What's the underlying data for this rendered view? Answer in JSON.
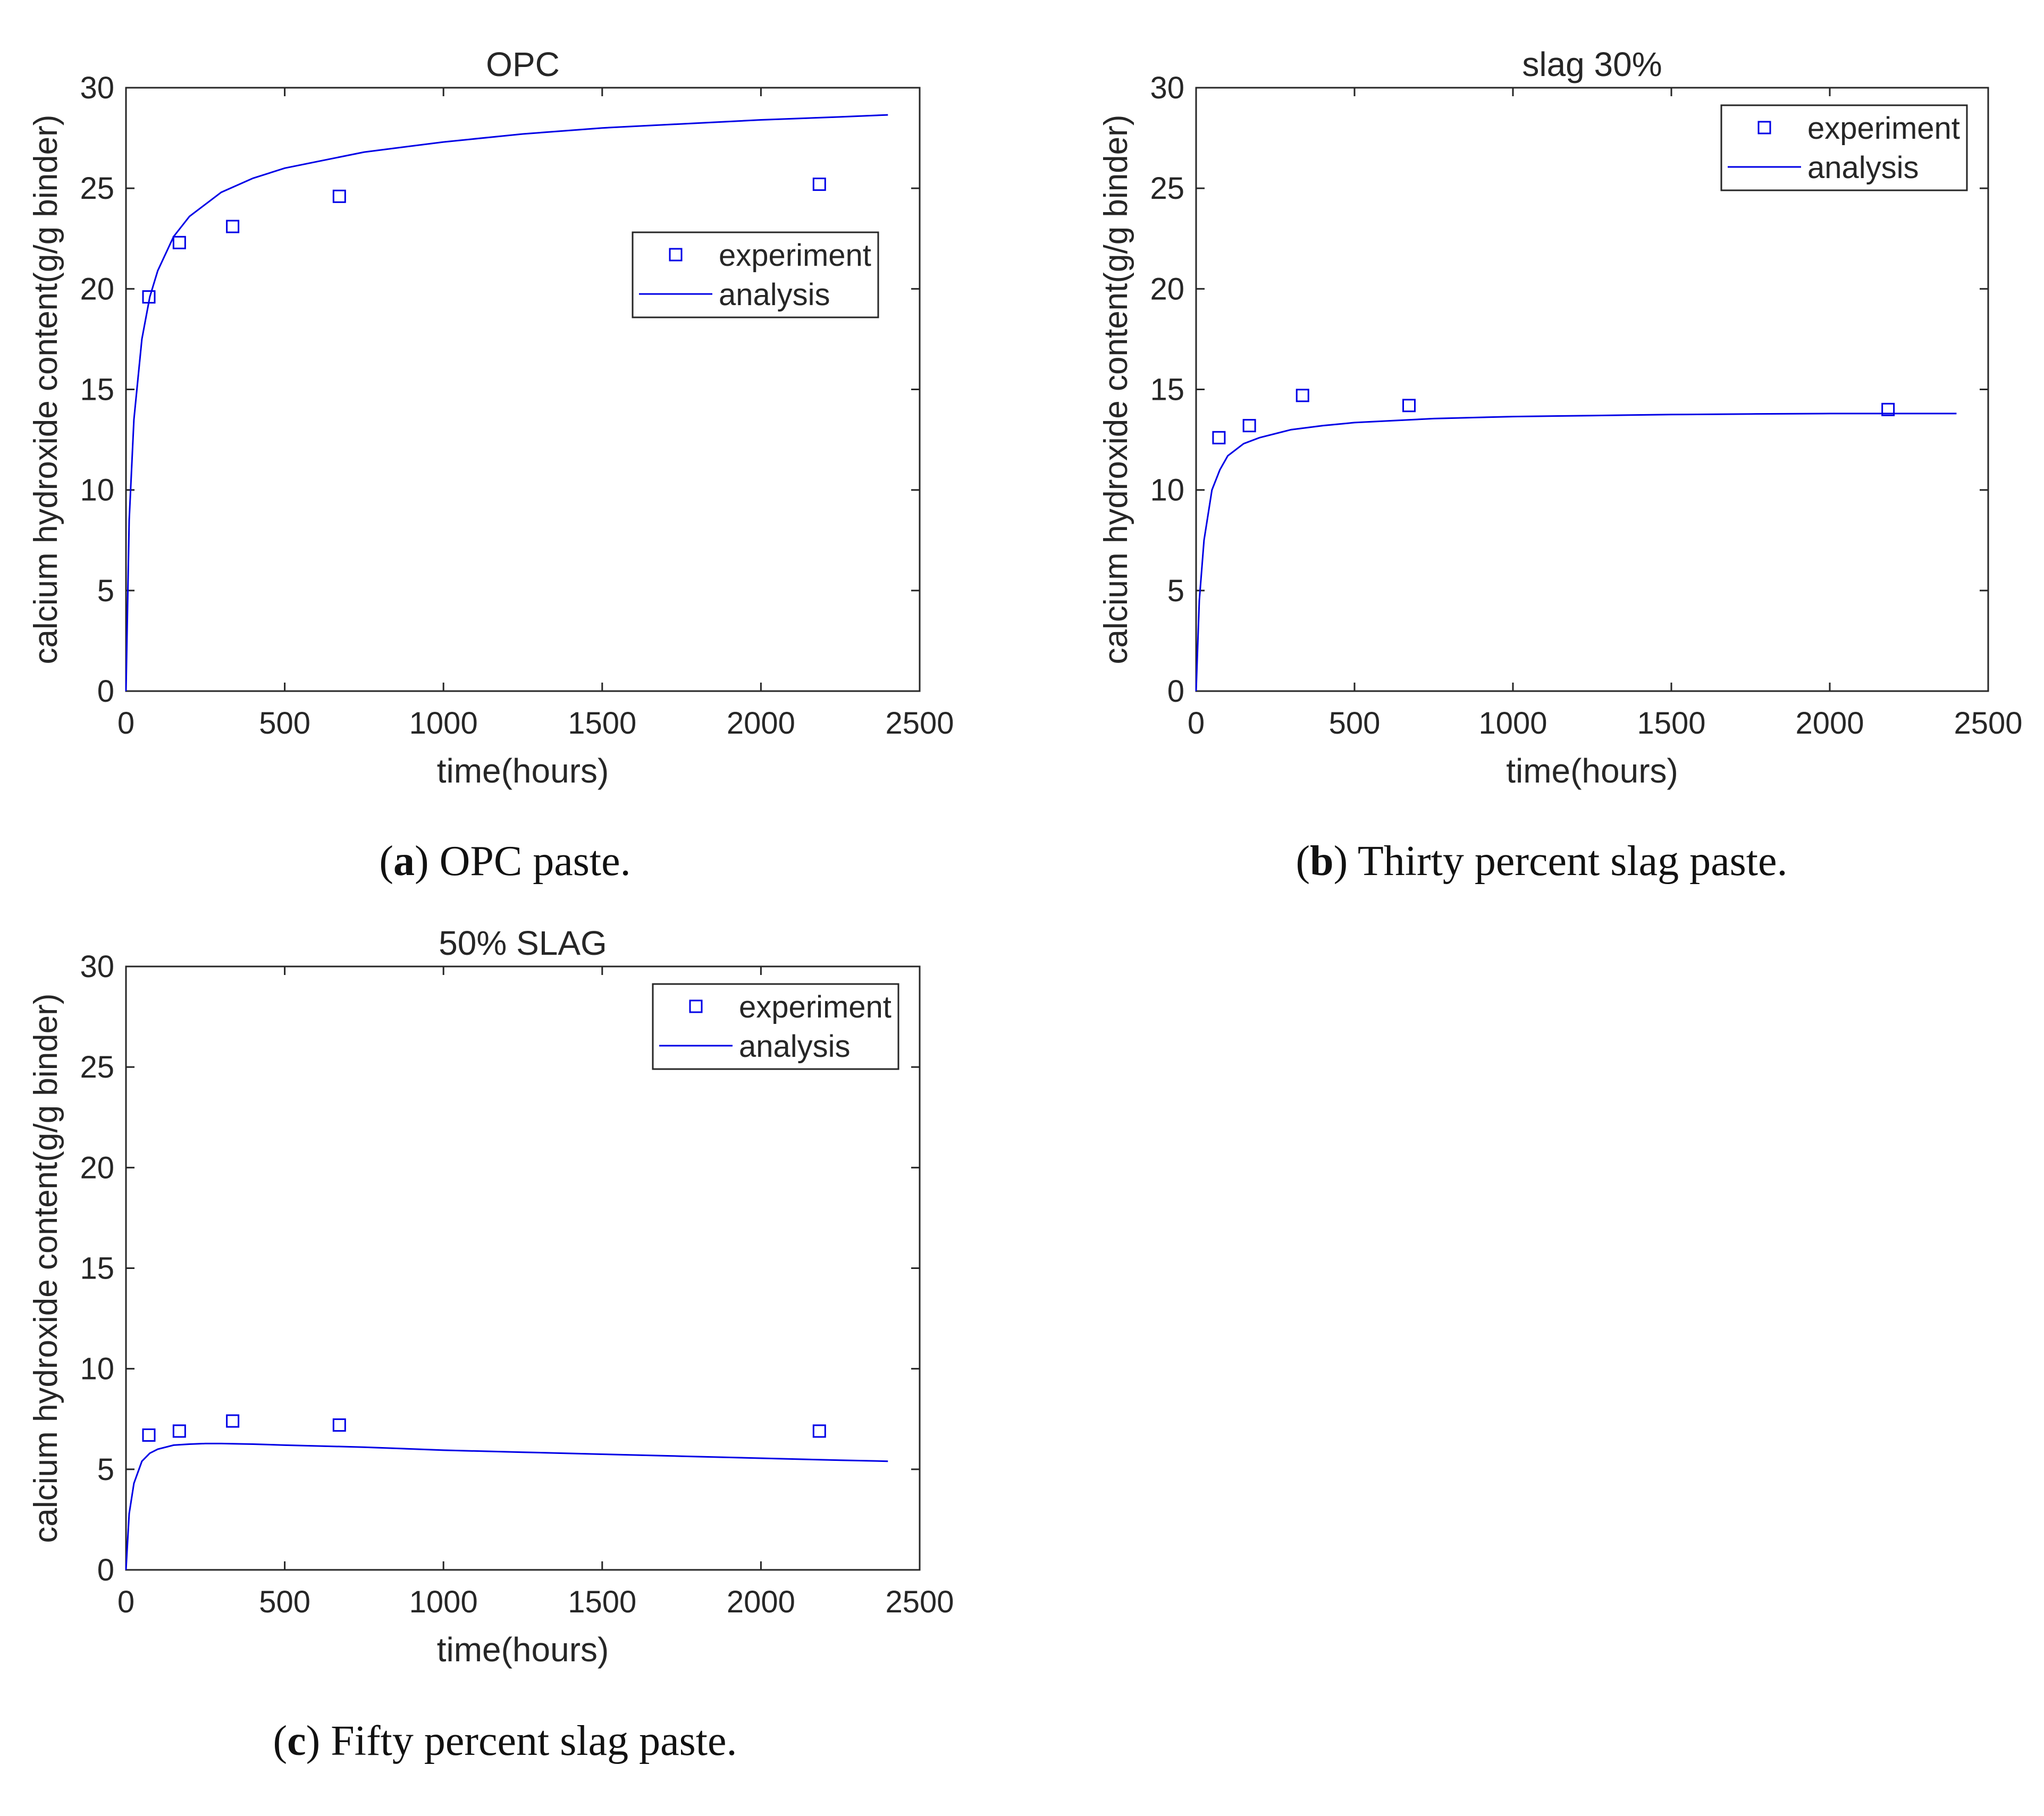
{
  "colors": {
    "series": "#0000e6",
    "axis": "#262626",
    "background": "#ffffff"
  },
  "chart_data": [
    {
      "type": "line+scatter",
      "title": "OPC",
      "xlabel": "time(hours)",
      "ylabel": "calcium hydroxide content(g/g binder)",
      "xlim": [
        0,
        2500
      ],
      "ylim": [
        0,
        30
      ],
      "xticks": [
        0,
        500,
        1000,
        1500,
        2000,
        2500
      ],
      "yticks": [
        0,
        5,
        10,
        15,
        20,
        25,
        30
      ],
      "legend_position": "middle-right",
      "series": [
        {
          "name": "experiment",
          "kind": "scatter",
          "marker": "square",
          "x": [
            72,
            168,
            336,
            672,
            2184
          ],
          "y": [
            19.6,
            22.3,
            23.1,
            24.6,
            25.2
          ]
        },
        {
          "name": "analysis",
          "kind": "line",
          "x": [
            0,
            10,
            25,
            50,
            75,
            100,
            150,
            200,
            300,
            400,
            500,
            750,
            1000,
            1250,
            1500,
            1750,
            2000,
            2250,
            2400
          ],
          "y": [
            0,
            8.5,
            13.5,
            17.5,
            19.6,
            20.9,
            22.6,
            23.6,
            24.8,
            25.5,
            26.0,
            26.8,
            27.3,
            27.7,
            28.0,
            28.2,
            28.4,
            28.55,
            28.65
          ]
        }
      ],
      "caption": {
        "letter": "a",
        "text": " OPC paste."
      }
    },
    {
      "type": "line+scatter",
      "title": "slag 30%",
      "xlabel": "time(hours)",
      "ylabel": "calcium hydroxide content(g/g binder)",
      "xlim": [
        0,
        2500
      ],
      "ylim": [
        0,
        30
      ],
      "xticks": [
        0,
        500,
        1000,
        1500,
        2000,
        2500
      ],
      "yticks": [
        0,
        5,
        10,
        15,
        20,
        25,
        30
      ],
      "legend_position": "top-right",
      "series": [
        {
          "name": "experiment",
          "kind": "scatter",
          "marker": "square",
          "x": [
            72,
            168,
            336,
            672,
            2184
          ],
          "y": [
            12.6,
            13.2,
            14.7,
            14.2,
            14.0
          ]
        },
        {
          "name": "analysis",
          "kind": "line",
          "x": [
            0,
            10,
            25,
            50,
            75,
            100,
            150,
            200,
            300,
            400,
            500,
            750,
            1000,
            1250,
            1500,
            1750,
            2000,
            2250,
            2400
          ],
          "y": [
            0,
            4.5,
            7.5,
            10.0,
            11.0,
            11.7,
            12.3,
            12.6,
            13.0,
            13.2,
            13.35,
            13.55,
            13.65,
            13.7,
            13.75,
            13.78,
            13.8,
            13.8,
            13.8
          ]
        }
      ],
      "caption": {
        "letter": "b",
        "text": " Thirty percent slag paste."
      }
    },
    {
      "type": "line+scatter",
      "title": "50% SLAG",
      "xlabel": "time(hours)",
      "ylabel": "calcium hydroxide content(g/g binder)",
      "xlim": [
        0,
        2500
      ],
      "ylim": [
        0,
        30
      ],
      "xticks": [
        0,
        500,
        1000,
        1500,
        2000,
        2500
      ],
      "yticks": [
        0,
        5,
        10,
        15,
        20,
        25,
        30
      ],
      "legend_position": "top-right",
      "series": [
        {
          "name": "experiment",
          "kind": "scatter",
          "marker": "square",
          "x": [
            72,
            168,
            336,
            672,
            2184
          ],
          "y": [
            6.7,
            6.9,
            7.4,
            7.2,
            6.9
          ]
        },
        {
          "name": "analysis",
          "kind": "line",
          "x": [
            0,
            10,
            25,
            50,
            75,
            100,
            150,
            200,
            250,
            300,
            400,
            500,
            750,
            1000,
            1250,
            1500,
            1750,
            2000,
            2250,
            2400
          ],
          "y": [
            0,
            2.8,
            4.3,
            5.4,
            5.8,
            6.0,
            6.2,
            6.25,
            6.28,
            6.28,
            6.25,
            6.2,
            6.1,
            5.95,
            5.85,
            5.75,
            5.65,
            5.55,
            5.45,
            5.4
          ]
        }
      ],
      "caption": {
        "letter": "c",
        "text": " Fifty percent slag paste."
      }
    }
  ]
}
